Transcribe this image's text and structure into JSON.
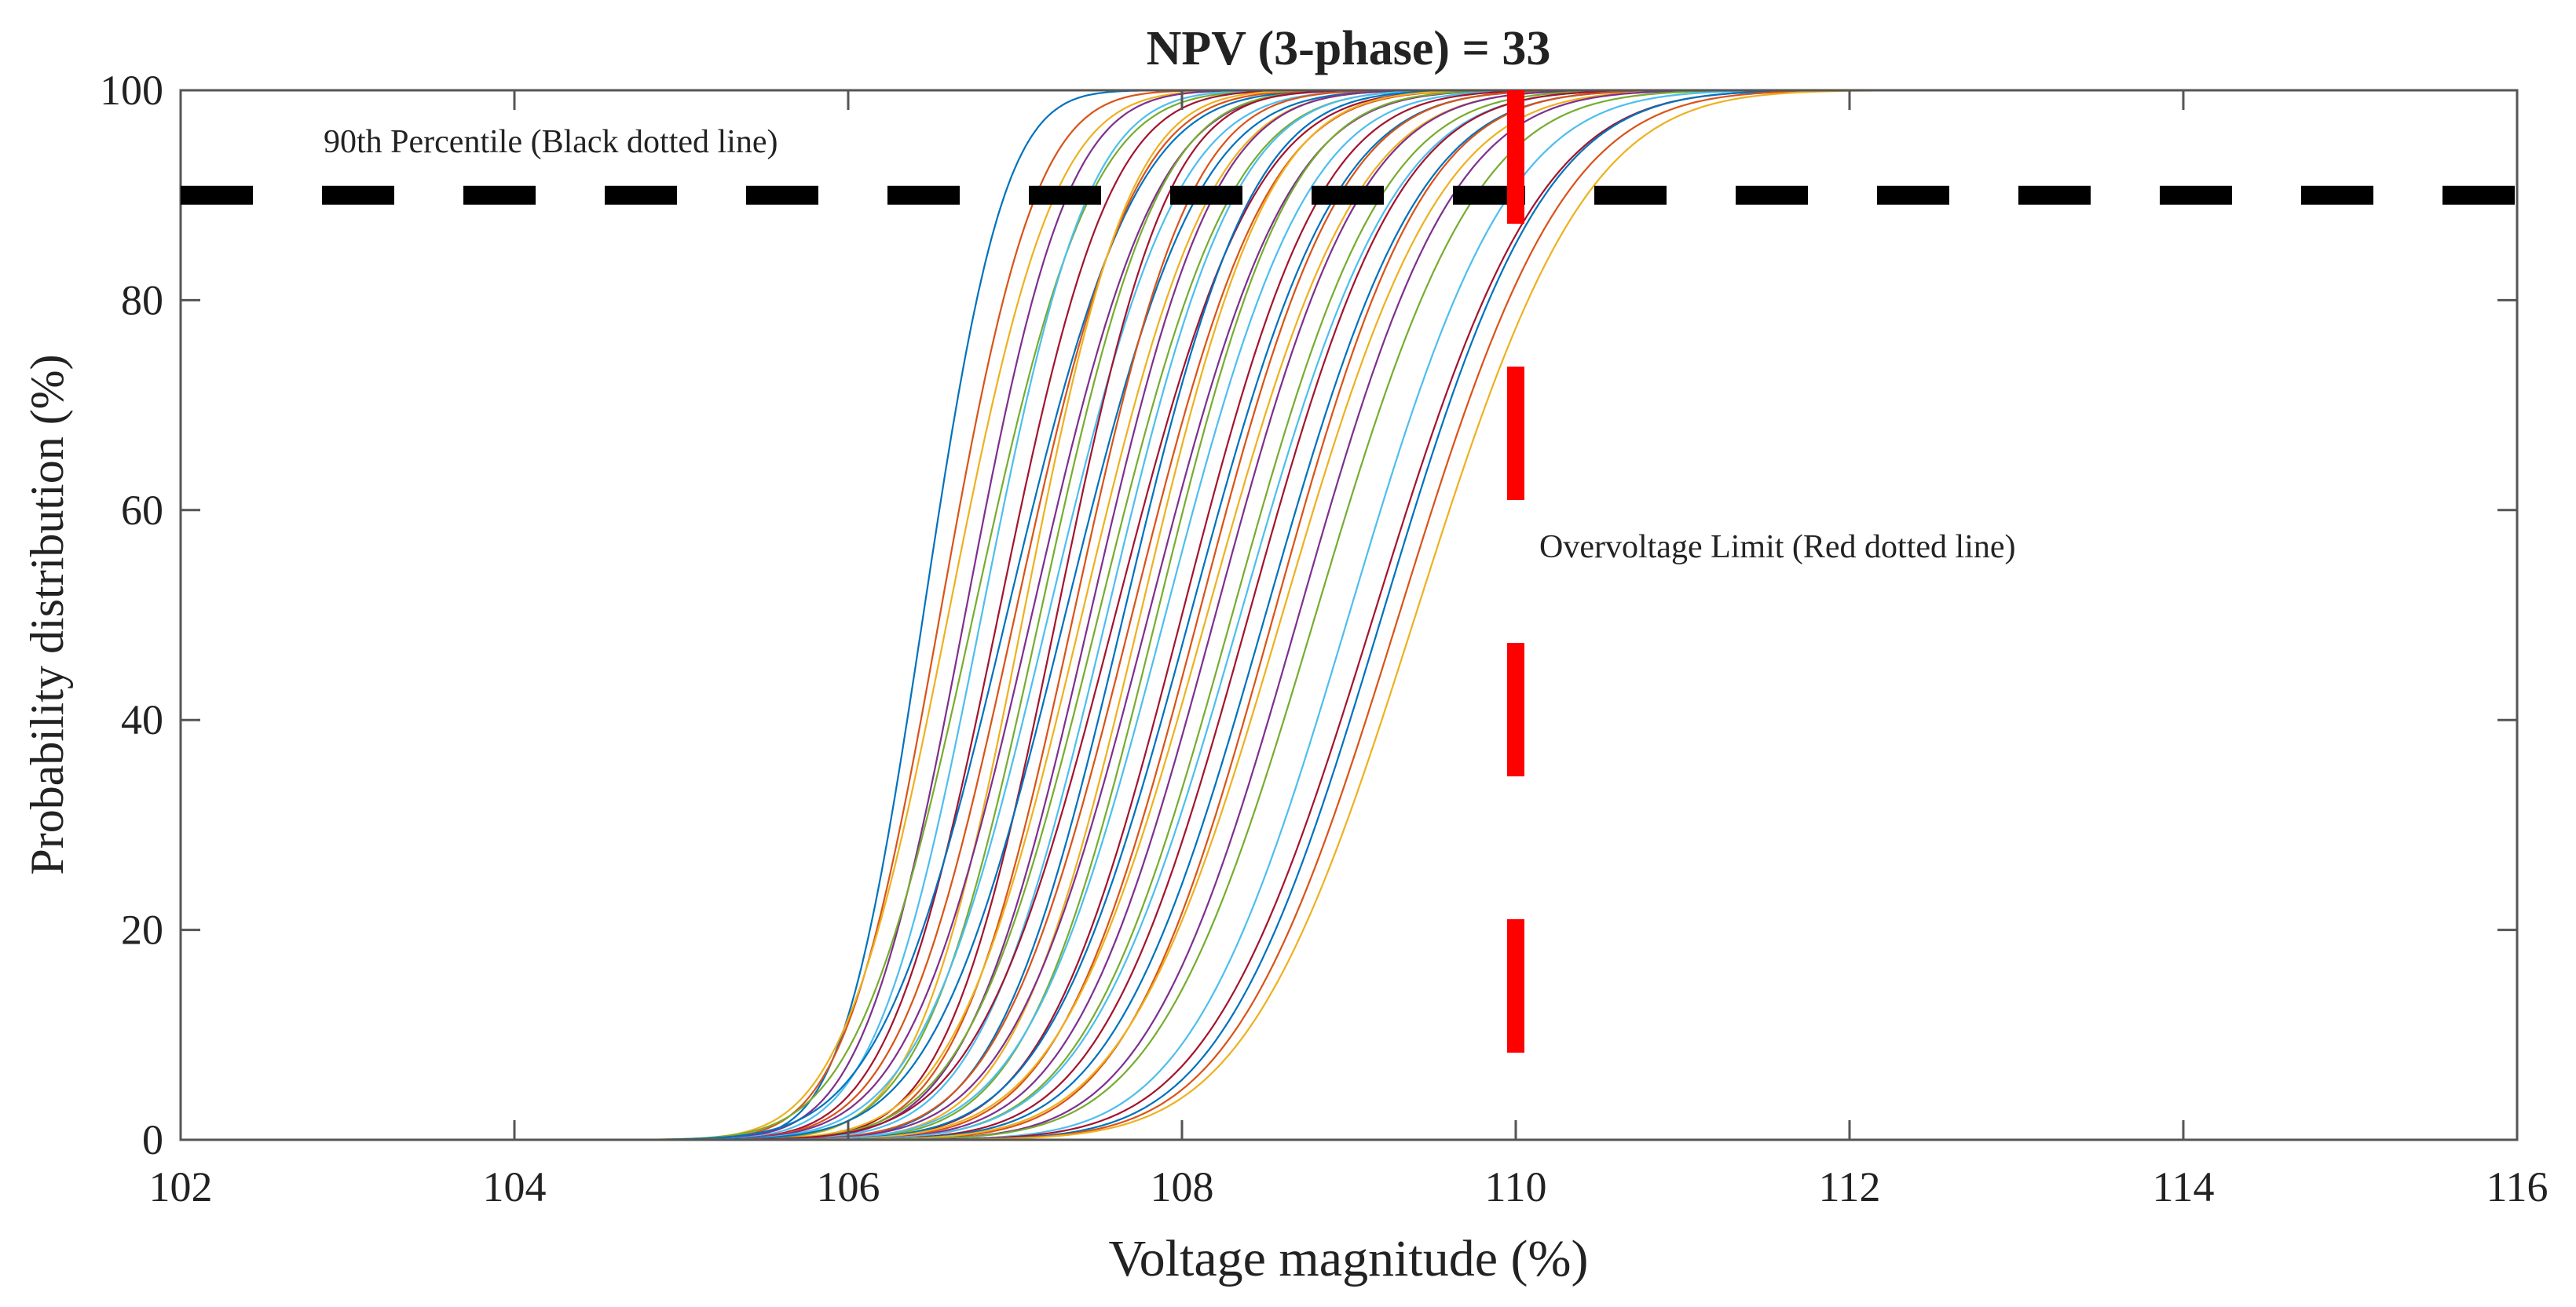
{
  "chart_data": {
    "type": "line",
    "title": "NPV (3-phase) = 33",
    "xlabel": "Voltage magnitude (%)",
    "ylabel": "Probability distribution (%)",
    "xlim": [
      102,
      116
    ],
    "ylim": [
      0,
      100
    ],
    "xticks": [
      "102",
      "104",
      "106",
      "108",
      "110",
      "112",
      "114",
      "116"
    ],
    "yticks": [
      "0",
      "20",
      "40",
      "60",
      "80",
      "100"
    ],
    "grid": false,
    "series_model": "normal CDF curves (mean, std in voltage %), one per bus",
    "series": [
      {
        "mean": 106.45,
        "std": 0.38
      },
      {
        "mean": 106.55,
        "std": 0.45
      },
      {
        "mean": 106.6,
        "std": 0.5
      },
      {
        "mean": 106.7,
        "std": 0.48
      },
      {
        "mean": 106.75,
        "std": 0.55
      },
      {
        "mean": 106.8,
        "std": 0.5
      },
      {
        "mean": 106.9,
        "std": 0.52
      },
      {
        "mean": 106.95,
        "std": 0.6
      },
      {
        "mean": 107.0,
        "std": 0.55
      },
      {
        "mean": 107.05,
        "std": 0.5
      },
      {
        "mean": 107.1,
        "std": 0.58
      },
      {
        "mean": 107.15,
        "std": 0.55
      },
      {
        "mean": 107.2,
        "std": 0.6
      },
      {
        "mean": 107.25,
        "std": 0.52
      },
      {
        "mean": 107.3,
        "std": 0.62
      },
      {
        "mean": 107.35,
        "std": 0.55
      },
      {
        "mean": 107.4,
        "std": 0.6
      },
      {
        "mean": 107.45,
        "std": 0.58
      },
      {
        "mean": 107.5,
        "std": 0.62
      },
      {
        "mean": 107.55,
        "std": 0.6
      },
      {
        "mean": 107.6,
        "std": 0.65
      },
      {
        "mean": 107.65,
        "std": 0.6
      },
      {
        "mean": 107.7,
        "std": 0.63
      },
      {
        "mean": 107.75,
        "std": 0.6
      },
      {
        "mean": 107.8,
        "std": 0.65
      },
      {
        "mean": 107.85,
        "std": 0.62
      },
      {
        "mean": 107.9,
        "std": 0.66
      },
      {
        "mean": 108.0,
        "std": 0.65
      },
      {
        "mean": 108.05,
        "std": 0.68
      },
      {
        "mean": 108.1,
        "std": 0.66
      },
      {
        "mean": 108.15,
        "std": 0.7
      },
      {
        "mean": 108.2,
        "std": 0.68
      },
      {
        "mean": 108.3,
        "std": 0.7
      },
      {
        "mean": 108.35,
        "std": 0.72
      },
      {
        "mean": 108.4,
        "std": 0.7
      },
      {
        "mean": 108.5,
        "std": 0.72
      },
      {
        "mean": 108.55,
        "std": 0.7
      },
      {
        "mean": 108.6,
        "std": 0.74
      },
      {
        "mean": 108.7,
        "std": 0.72
      },
      {
        "mean": 108.8,
        "std": 0.75
      },
      {
        "mean": 109.0,
        "std": 0.75
      },
      {
        "mean": 109.15,
        "std": 0.78
      },
      {
        "mean": 109.2,
        "std": 0.76
      },
      {
        "mean": 109.3,
        "std": 0.78
      },
      {
        "mean": 109.4,
        "std": 0.8
      }
    ],
    "series_colors": [
      "#0072BD",
      "#D95319",
      "#EDB120",
      "#7E2F8E",
      "#77AC30",
      "#4DBEEE",
      "#A2142F"
    ],
    "reference_lines": [
      {
        "orientation": "horizontal",
        "value": 90,
        "color": "#000000",
        "style": "dashed"
      },
      {
        "orientation": "vertical",
        "value": 110,
        "color": "#FF0000",
        "style": "dashed"
      }
    ],
    "annotations": {
      "percentile": "90th Percentile (Black dotted line)",
      "overvoltage": "Overvoltage Limit (Red dotted line)"
    }
  }
}
